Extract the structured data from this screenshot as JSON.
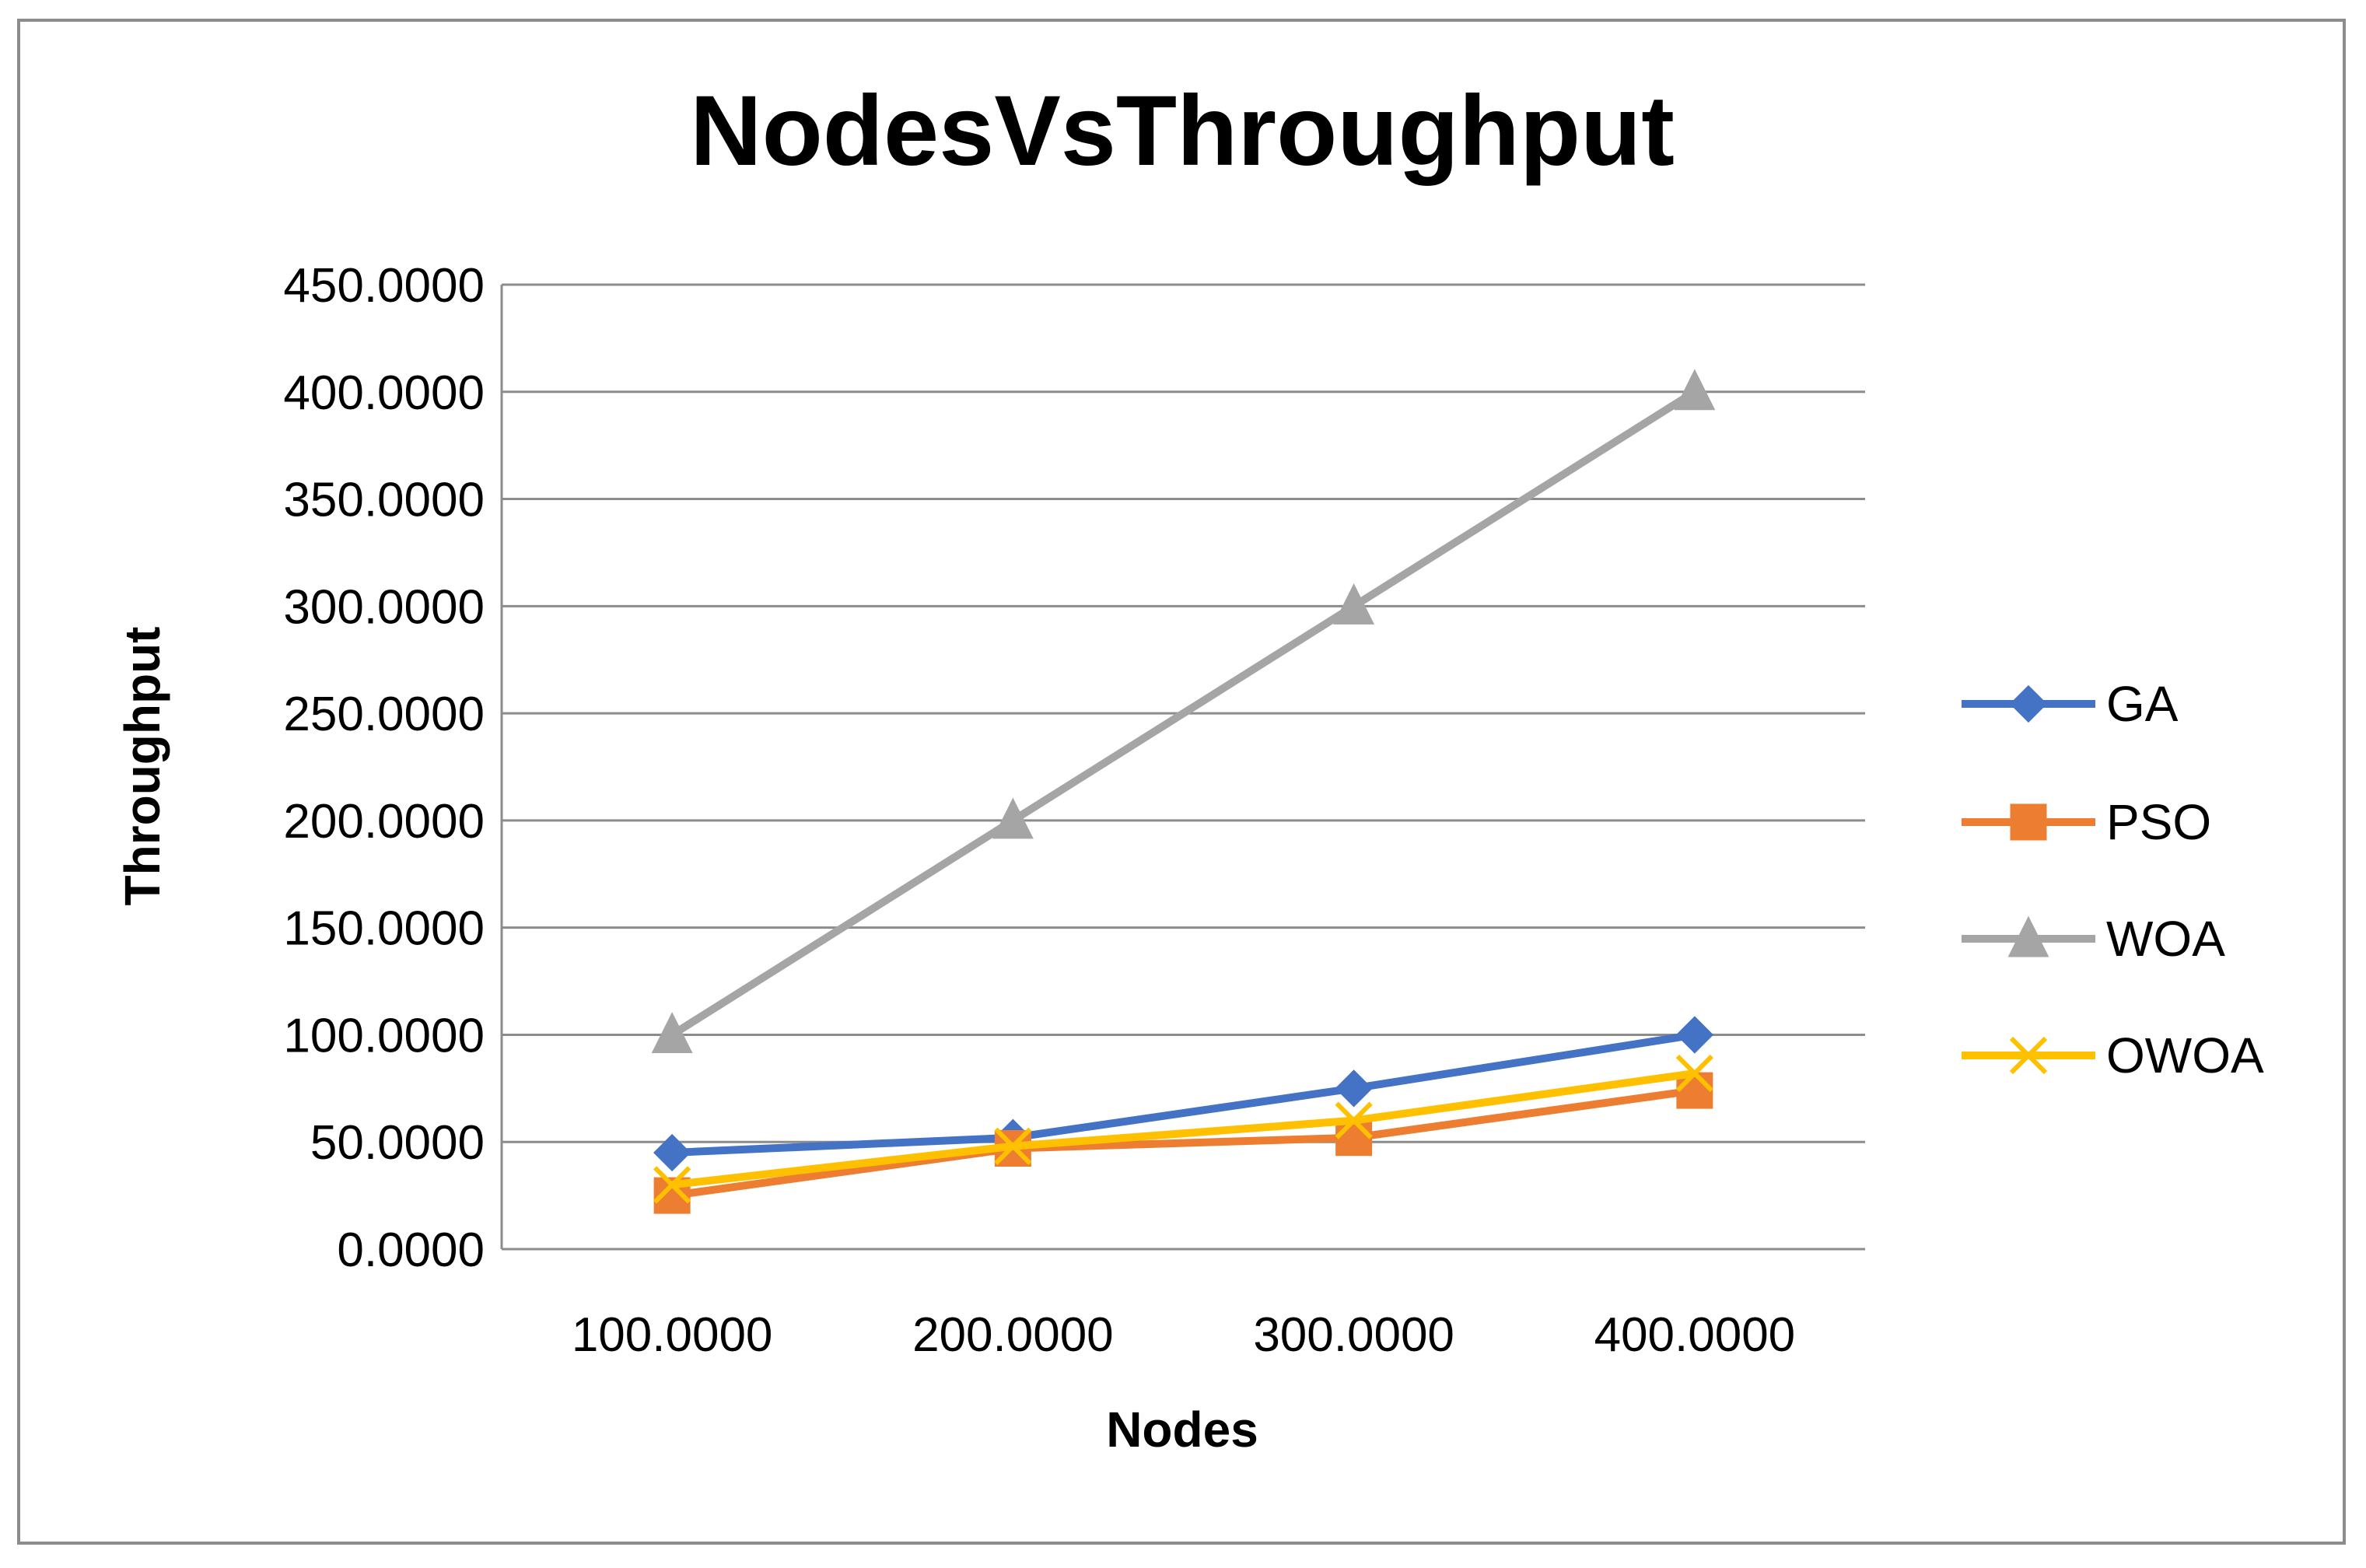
{
  "chart_data": {
    "type": "line",
    "title": "NodesVsThroughput",
    "xlabel": "Nodes",
    "ylabel": "Throughput",
    "categories": [
      "100.0000",
      "200.0000",
      "300.0000",
      "400.0000"
    ],
    "x": [
      100,
      200,
      300,
      400
    ],
    "ylim": [
      0,
      450
    ],
    "yticks": [
      "0.0000",
      "50.0000",
      "100.0000",
      "150.0000",
      "200.0000",
      "250.0000",
      "300.0000",
      "350.0000",
      "400.0000",
      "450.0000"
    ],
    "grid": true,
    "legend_position": "right",
    "series": [
      {
        "name": "GA",
        "color": "#4472C4",
        "marker": "diamond",
        "values": [
          45,
          52,
          75,
          100
        ]
      },
      {
        "name": "PSO",
        "color": "#ED7D31",
        "marker": "square",
        "values": [
          25,
          47,
          52,
          74
        ]
      },
      {
        "name": "WOA",
        "color": "#A5A5A5",
        "marker": "triangle",
        "values": [
          100,
          200,
          300,
          400
        ]
      },
      {
        "name": "OWOA",
        "color": "#FFC000",
        "marker": "x",
        "values": [
          30,
          48,
          60,
          82
        ]
      }
    ]
  }
}
